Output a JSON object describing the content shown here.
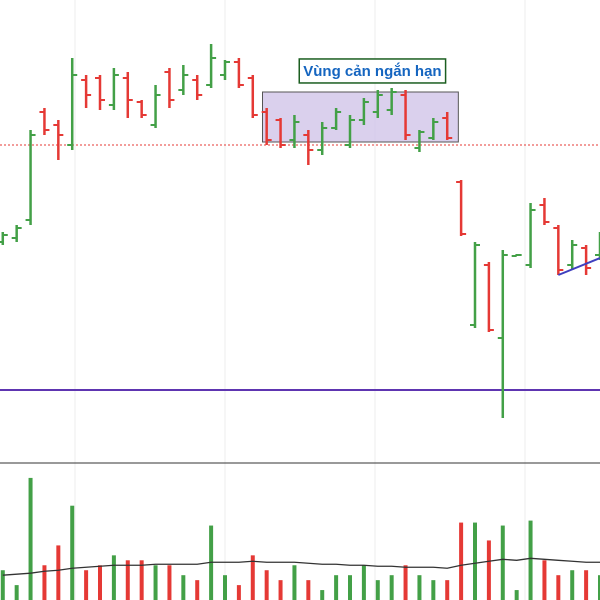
{
  "chart_data": [
    {
      "type": "ohlc",
      "up_color": "#43a047",
      "down_color": "#e53935",
      "xlim": [
        -0.2,
        43.0
      ],
      "ylim": [
        0,
        46.2
      ],
      "open": [
        22.0,
        22.4,
        24.2,
        35.0,
        33.7,
        31.7,
        38.2,
        38.4,
        35.7,
        38.4,
        36.0,
        33.7,
        39.0,
        37.2,
        38.2,
        37.7,
        38.7,
        40.0,
        38.4,
        35.0,
        34.2,
        32.2,
        32.7,
        31.2,
        33.4,
        31.7,
        34.2,
        35.0,
        35.2,
        36.7,
        31.4,
        32.4,
        34.4,
        28.0,
        13.7,
        19.7,
        12.4,
        20.6,
        19.7,
        25.7,
        23.4,
        19.7,
        21.4,
        20.7
      ],
      "high": [
        23.0,
        23.7,
        33.2,
        35.4,
        34.2,
        40.4,
        38.7,
        38.7,
        39.4,
        39.0,
        36.2,
        37.7,
        39.4,
        39.7,
        38.7,
        41.8,
        40.2,
        40.4,
        38.7,
        35.4,
        34.4,
        34.7,
        33.2,
        34.0,
        35.4,
        34.7,
        36.4,
        37.2,
        37.4,
        37.2,
        33.2,
        34.4,
        35.0,
        28.2,
        22.0,
        20.0,
        21.2,
        20.8,
        25.9,
        26.4,
        23.7,
        22.2,
        21.7,
        23.0
      ],
      "low": [
        21.7,
        22.0,
        23.7,
        32.7,
        30.2,
        31.2,
        35.4,
        35.2,
        35.2,
        34.4,
        34.4,
        33.4,
        35.4,
        36.7,
        36.2,
        37.4,
        38.2,
        37.4,
        34.4,
        31.7,
        31.4,
        31.4,
        29.7,
        30.7,
        33.2,
        31.4,
        33.7,
        34.4,
        34.7,
        32.2,
        31.0,
        32.2,
        32.2,
        22.6,
        13.4,
        13.0,
        4.4,
        20.6,
        19.4,
        23.7,
        18.7,
        19.2,
        18.7,
        20.2
      ],
      "close": [
        22.7,
        23.4,
        32.7,
        33.2,
        32.7,
        38.7,
        36.7,
        36.2,
        38.7,
        36.2,
        34.7,
        36.7,
        36.2,
        38.7,
        36.7,
        40.4,
        40.0,
        37.7,
        34.7,
        32.2,
        31.7,
        34.0,
        31.2,
        33.4,
        35.0,
        34.2,
        36.0,
        36.7,
        37.0,
        32.7,
        33.0,
        34.0,
        32.4,
        22.8,
        21.7,
        13.2,
        20.7,
        20.7,
        25.2,
        24.0,
        19.2,
        21.7,
        19.4,
        22.2
      ],
      "hlines": [
        {
          "value": 7.2,
          "color": "#5e35b1",
          "style": "solid"
        },
        {
          "value": 31.7,
          "color": "#e53935",
          "style": "dotted"
        }
      ],
      "trendline": {
        "x": [
          40.0,
          43.0
        ],
        "y": [
          18.7,
          20.4
        ],
        "color": "#3f3fbf"
      },
      "zone": {
        "label": "Vùng cản ngắn hạn",
        "x": [
          18.7,
          32.8
        ],
        "y": [
          32.0,
          37.0
        ],
        "color": "#d1c4e9",
        "label_color": "#1565c0",
        "border_color": "#1b5e20"
      }
    },
    {
      "type": "volume",
      "xlim": [
        -0.2,
        43.0
      ],
      "ylim": [
        0,
        13.5
      ],
      "values": [
        3.0,
        1.5,
        12.3,
        3.5,
        5.5,
        9.5,
        3.0,
        3.5,
        4.5,
        4.0,
        4.0,
        3.5,
        3.5,
        2.5,
        2.0,
        7.5,
        2.5,
        1.5,
        4.5,
        3.0,
        2.0,
        3.5,
        2.0,
        1.0,
        2.5,
        2.5,
        3.5,
        2.0,
        2.5,
        3.5,
        2.5,
        2.0,
        2.0,
        7.8,
        7.8,
        6.0,
        7.5,
        1.0,
        8.0,
        4.0,
        2.5,
        3.0,
        3.0,
        2.5
      ],
      "ma": [
        2.5,
        2.6,
        2.7,
        2.9,
        3.0,
        3.2,
        3.3,
        3.4,
        3.5,
        3.5,
        3.5,
        3.6,
        3.6,
        3.6,
        3.6,
        3.8,
        3.8,
        3.8,
        3.9,
        3.8,
        3.8,
        3.8,
        3.7,
        3.6,
        3.6,
        3.5,
        3.5,
        3.4,
        3.4,
        3.3,
        3.3,
        3.3,
        3.2,
        3.5,
        3.7,
        3.9,
        4.1,
        4.0,
        4.2,
        4.1,
        4.0,
        3.9,
        3.8,
        3.8
      ],
      "ma_color": "#333333"
    }
  ]
}
